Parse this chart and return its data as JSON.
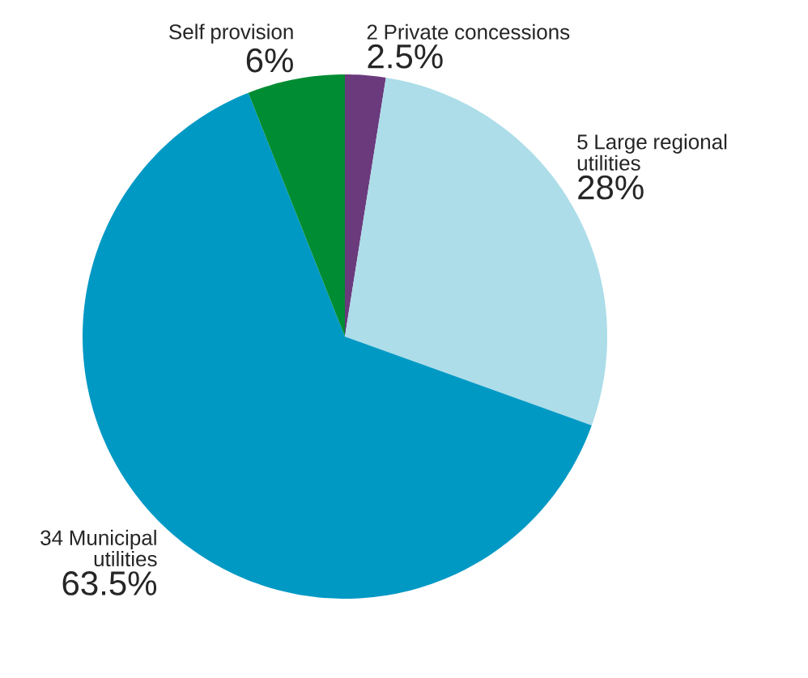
{
  "chart_data": {
    "type": "pie",
    "categories": [
      "2 Private concessions",
      "5 Large regional utilities",
      "34 Municipal utilities",
      "Self provision"
    ],
    "values": [
      2.5,
      28,
      63.5,
      6
    ],
    "colors": [
      "#6b3a7d",
      "#acdde9",
      "#0099c4",
      "#008c32"
    ],
    "value_labels": [
      "2.5%",
      "28%",
      "63.5%",
      "6%"
    ]
  }
}
